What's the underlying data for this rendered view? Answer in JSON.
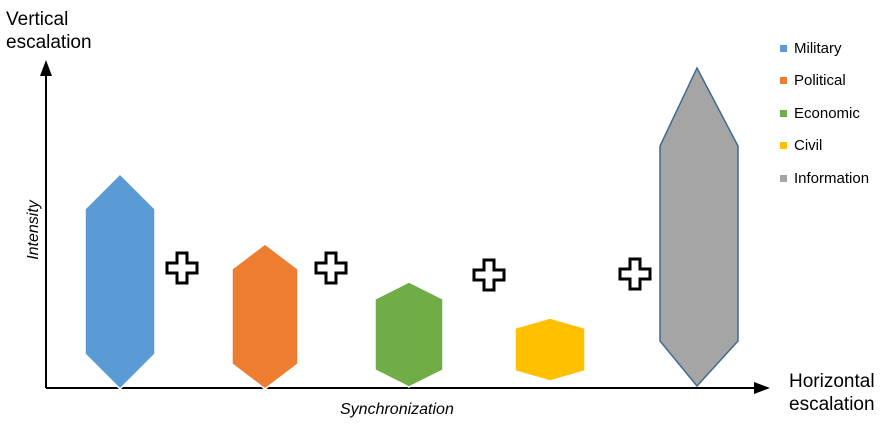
{
  "axes": {
    "vertical_name": "Vertical\nescalation",
    "horizontal_name": "Horizontal\nescalation",
    "y_title": "Intensity",
    "x_title": "Synchronization"
  },
  "legend": [
    {
      "label": "Military",
      "color": "#5b9bd5"
    },
    {
      "label": "Political",
      "color": "#ed7d31"
    },
    {
      "label": "Economic",
      "color": "#70ad47"
    },
    {
      "label": "Civil",
      "color": "#ffc000"
    },
    {
      "label": "Information",
      "color": "#a5a5a5"
    }
  ],
  "arrows": [
    {
      "name": "military",
      "color": "#5b9bd5"
    },
    {
      "name": "political",
      "color": "#ed7d31"
    },
    {
      "name": "economic",
      "color": "#70ad47"
    },
    {
      "name": "civil",
      "color": "#ffc000"
    },
    {
      "name": "information",
      "color": "#a5a5a5"
    }
  ],
  "operator_symbol": "plus-icon"
}
